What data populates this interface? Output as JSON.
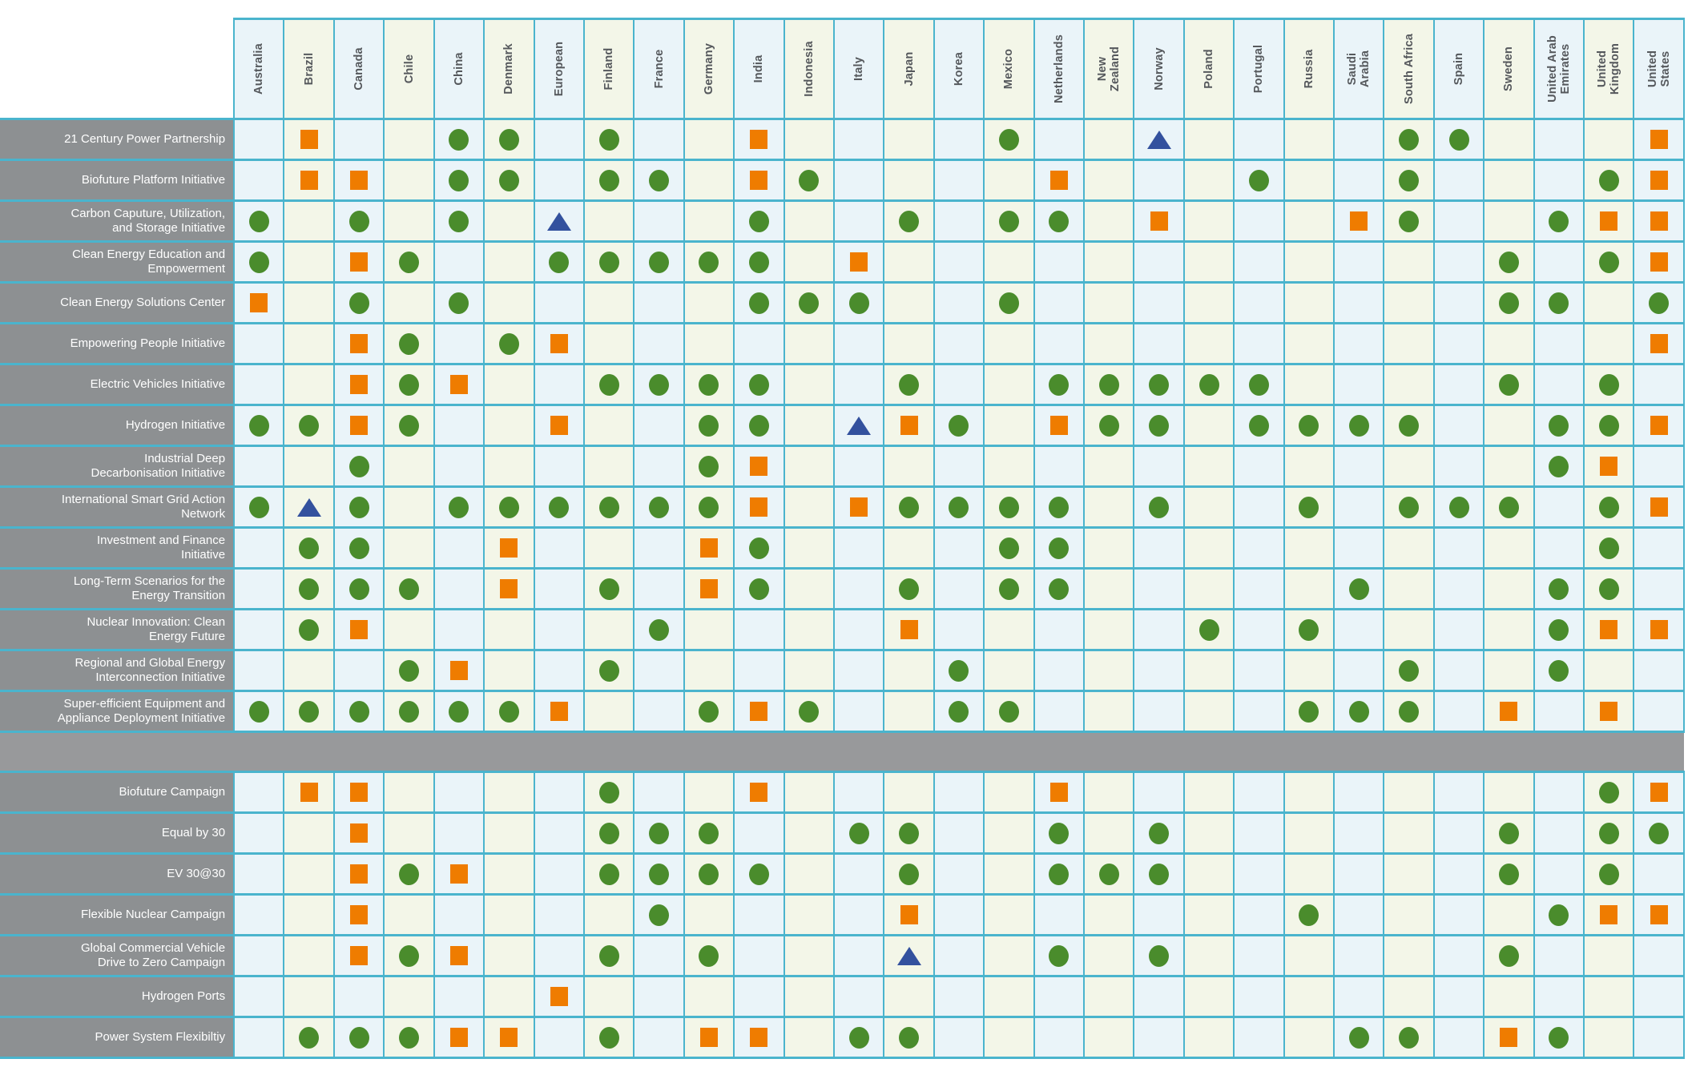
{
  "chart_data": {
    "type": "table",
    "description_of_encoding": "participation matrix: rows are clean-energy initiatives and campaigns, columns are countries, cell markers are circle / square / triangle",
    "marker_colors": {
      "circle": "#4a8c2c",
      "square": "#ef7c00",
      "triangle": "#33519e"
    },
    "columns": [
      "Australia",
      "Brazil",
      "Canada",
      "Chile",
      "China",
      "Denmark",
      "European",
      "Finland",
      "France",
      "Germany",
      "India",
      "Indonesia",
      "Italy",
      "Japan",
      "Korea",
      "Mexico",
      "Netherlands",
      "New\nZealand",
      "Norway",
      "Poland",
      "Portugal",
      "Russia",
      "Saudi\nArabia",
      "South Africa",
      "Spain",
      "Sweden",
      "United Arab\nEmirates",
      "United\nKingdom",
      "United\nStates"
    ],
    "column_keys": [
      "Australia",
      "Brazil",
      "Canada",
      "Chile",
      "China",
      "Denmark",
      "European",
      "Finland",
      "France",
      "Germany",
      "India",
      "Indonesia",
      "Italy",
      "Japan",
      "Korea",
      "Mexico",
      "Netherlands",
      "New Zealand",
      "Norway",
      "Poland",
      "Portugal",
      "Russia",
      "Saudi Arabia",
      "South Africa",
      "Spain",
      "Sweden",
      "United Arab Emirates",
      "United Kingdom",
      "United States"
    ],
    "sections": [
      {
        "id": "initiatives",
        "rows": [
          {
            "label": "21 Century Power Partnership",
            "markers": {
              "Brazil": "square",
              "China": "circle",
              "Denmark": "circle",
              "Finland": "circle",
              "India": "square",
              "Mexico": "circle",
              "Norway": "triangle",
              "South Africa": "circle",
              "Spain": "circle",
              "United States": "square"
            }
          },
          {
            "label": "Biofuture Platform Initiative",
            "markers": {
              "Brazil": "square",
              "Canada": "square",
              "China": "circle",
              "Denmark": "circle",
              "Finland": "circle",
              "France": "circle",
              "India": "square",
              "Indonesia": "circle",
              "Netherlands": "square",
              "Portugal": "circle",
              "South Africa": "circle",
              "United Kingdom": "circle",
              "United States": "square"
            }
          },
          {
            "label": "Carbon Caputure, Utilization,\nand Storage Initiative",
            "markers": {
              "Australia": "circle",
              "Canada": "circle",
              "China": "circle",
              "European": "triangle",
              "India": "circle",
              "Japan": "circle",
              "Mexico": "circle",
              "Netherlands": "circle",
              "Norway": "square",
              "Saudi Arabia": "square",
              "South Africa": "circle",
              "United Arab Emirates": "circle",
              "United Kingdom": "square",
              "United States": "square"
            }
          },
          {
            "label": "Clean Energy Education and\nEmpowerment",
            "markers": {
              "Australia": "circle",
              "Canada": "square",
              "Chile": "circle",
              "European": "circle",
              "Finland": "circle",
              "France": "circle",
              "Germany": "circle",
              "India": "circle",
              "Italy": "square",
              "Sweden": "circle",
              "United Kingdom": "circle",
              "United States": "square"
            }
          },
          {
            "label": "Clean Energy Solutions Center",
            "markers": {
              "Australia": "square",
              "Canada": "circle",
              "China": "circle",
              "India": "circle",
              "Indonesia": "circle",
              "Italy": "circle",
              "Mexico": "circle",
              "Sweden": "circle",
              "United Arab Emirates": "circle",
              "United States": "circle"
            }
          },
          {
            "label": "Empowering People Initiative",
            "markers": {
              "Canada": "square",
              "Chile": "circle",
              "Denmark": "circle",
              "European": "square",
              "United States": "square"
            }
          },
          {
            "label": "Electric Vehicles Initiative",
            "markers": {
              "Canada": "square",
              "Chile": "circle",
              "China": "square",
              "Finland": "circle",
              "France": "circle",
              "Germany": "circle",
              "India": "circle",
              "Japan": "circle",
              "Netherlands": "circle",
              "New Zealand": "circle",
              "Norway": "circle",
              "Poland": "circle",
              "Portugal": "circle",
              "Sweden": "circle",
              "United Kingdom": "circle"
            }
          },
          {
            "label": "Hydrogen Initiative",
            "markers": {
              "Australia": "circle",
              "Brazil": "circle",
              "Canada": "square",
              "Chile": "circle",
              "European": "square",
              "Germany": "circle",
              "India": "circle",
              "Italy": "triangle",
              "Japan": "square",
              "Korea": "circle",
              "Netherlands": "square",
              "New Zealand": "circle",
              "Norway": "circle",
              "Portugal": "circle",
              "Russia": "circle",
              "Saudi Arabia": "circle",
              "South Africa": "circle",
              "United Arab Emirates": "circle",
              "United Kingdom": "circle",
              "United States": "square"
            }
          },
          {
            "label": "Industrial Deep\nDecarbonisation Initiative",
            "markers": {
              "Canada": "circle",
              "Germany": "circle",
              "India": "square",
              "United Arab Emirates": "circle",
              "United Kingdom": "square"
            }
          },
          {
            "label": "International Smart Grid Action\nNetwork",
            "markers": {
              "Australia": "circle",
              "Brazil": "triangle",
              "Canada": "circle",
              "China": "circle",
              "Denmark": "circle",
              "European": "circle",
              "Finland": "circle",
              "France": "circle",
              "Germany": "circle",
              "India": "square",
              "Italy": "square",
              "Japan": "circle",
              "Korea": "circle",
              "Mexico": "circle",
              "Netherlands": "circle",
              "Norway": "circle",
              "Russia": "circle",
              "South Africa": "circle",
              "Spain": "circle",
              "Sweden": "circle",
              "United Kingdom": "circle",
              "United States": "square"
            }
          },
          {
            "label": "Investment and Finance\nInitiative",
            "markers": {
              "Brazil": "circle",
              "Canada": "circle",
              "Denmark": "square",
              "Germany": "square",
              "India": "circle",
              "Mexico": "circle",
              "Netherlands": "circle",
              "United Kingdom": "circle"
            }
          },
          {
            "label": "Long-Term Scenarios for the\nEnergy Transition",
            "markers": {
              "Brazil": "circle",
              "Canada": "circle",
              "Chile": "circle",
              "Denmark": "square",
              "Finland": "circle",
              "Germany": "square",
              "India": "circle",
              "Japan": "circle",
              "Mexico": "circle",
              "Netherlands": "circle",
              "Saudi Arabia": "circle",
              "United Arab Emirates": "circle",
              "United Kingdom": "circle"
            }
          },
          {
            "label": "Nuclear Innovation: Clean\nEnergy Future",
            "markers": {
              "Brazil": "circle",
              "Canada": "square",
              "France": "circle",
              "Japan": "square",
              "Poland": "circle",
              "Russia": "circle",
              "United Arab Emirates": "circle",
              "United Kingdom": "square",
              "United States": "square"
            }
          },
          {
            "label": "Regional and Global Energy\nInterconnection Initiative",
            "markers": {
              "Chile": "circle",
              "China": "square",
              "Finland": "circle",
              "Korea": "circle",
              "South Africa": "circle",
              "United Arab Emirates": "circle"
            }
          },
          {
            "label": "Super-efficient Equipment and\nAppliance Deployment Initiative",
            "markers": {
              "Australia": "circle",
              "Brazil": "circle",
              "Canada": "circle",
              "Chile": "circle",
              "China": "circle",
              "Denmark": "circle",
              "European": "square",
              "Germany": "circle",
              "India": "square",
              "Indonesia": "circle",
              "Korea": "circle",
              "Mexico": "circle",
              "Russia": "circle",
              "Saudi Arabia": "circle",
              "South Africa": "circle",
              "Sweden": "square",
              "United Kingdom": "square"
            }
          }
        ]
      },
      {
        "id": "campaigns",
        "rows": [
          {
            "label": "Biofuture Campaign",
            "markers": {
              "Brazil": "square",
              "Canada": "square",
              "Finland": "circle",
              "India": "square",
              "Netherlands": "square",
              "United Kingdom": "circle",
              "United States": "square"
            }
          },
          {
            "label": "Equal by 30",
            "markers": {
              "Canada": "square",
              "Finland": "circle",
              "France": "circle",
              "Germany": "circle",
              "Italy": "circle",
              "Japan": "circle",
              "Netherlands": "circle",
              "Norway": "circle",
              "Sweden": "circle",
              "United Kingdom": "circle",
              "United States": "circle"
            }
          },
          {
            "label": "EV 30@30",
            "markers": {
              "Canada": "square",
              "Chile": "circle",
              "China": "square",
              "Finland": "circle",
              "France": "circle",
              "Germany": "circle",
              "India": "circle",
              "Japan": "circle",
              "Netherlands": "circle",
              "New Zealand": "circle",
              "Norway": "circle",
              "Sweden": "circle",
              "United Kingdom": "circle"
            }
          },
          {
            "label": "Flexible Nuclear Campaign",
            "markers": {
              "Canada": "square",
              "France": "circle",
              "Japan": "square",
              "Russia": "circle",
              "United Arab Emirates": "circle",
              "United Kingdom": "square",
              "United States": "square"
            }
          },
          {
            "label": "Global Commercial Vehicle\nDrive to Zero Campaign",
            "markers": {
              "Canada": "square",
              "Chile": "circle",
              "China": "square",
              "Finland": "circle",
              "Germany": "circle",
              "Japan": "triangle",
              "Netherlands": "circle",
              "Norway": "circle",
              "Sweden": "circle"
            }
          },
          {
            "label": "Hydrogen Ports",
            "markers": {
              "European": "square"
            }
          },
          {
            "label": "Power System Flexibiltiy",
            "markers": {
              "Brazil": "circle",
              "Canada": "circle",
              "Chile": "circle",
              "China": "square",
              "Denmark": "square",
              "Finland": "circle",
              "Germany": "square",
              "India": "square",
              "Italy": "circle",
              "Japan": "circle",
              "Saudi Arabia": "circle",
              "South Africa": "circle",
              "Sweden": "square",
              "United Arab Emirates": "circle"
            }
          }
        ]
      }
    ]
  }
}
